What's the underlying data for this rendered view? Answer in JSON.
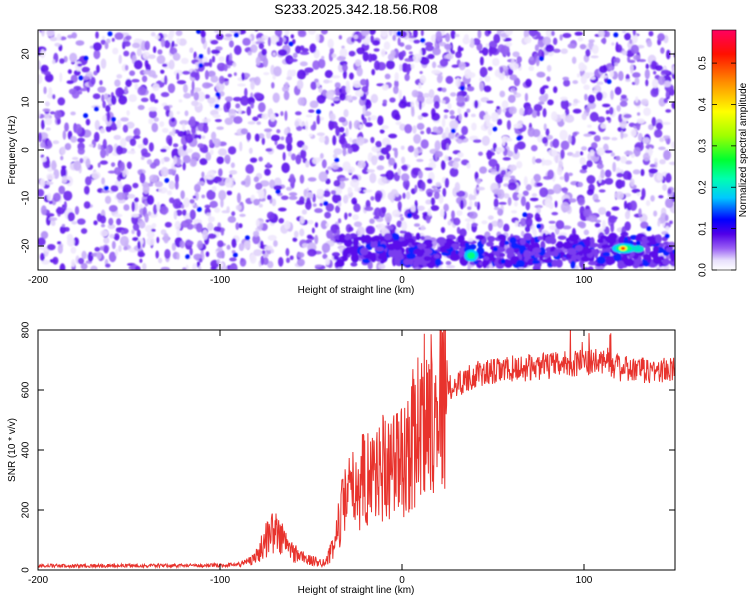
{
  "title": "S233.2025.342.18.56.R08",
  "chart_data": [
    {
      "type": "heatmap",
      "xlabel": "Height of straight line (km)",
      "ylabel": "Frequency (Hz)",
      "xlim": [
        -200,
        150
      ],
      "ylim": [
        -25,
        25
      ],
      "xticks": [
        -200,
        -100,
        0,
        100
      ],
      "yticks": [
        -20,
        -10,
        0,
        10,
        20
      ],
      "colorbar": {
        "label": "Normalized spectral amplitude",
        "range": [
          0,
          0.58
        ],
        "ticks": [
          0.0,
          0.1,
          0.2,
          0.3,
          0.4,
          0.5
        ],
        "colors": [
          "#ffffff",
          "#d8c8f8",
          "#8040f0",
          "#5000e8",
          "#0000ff",
          "#00c0ff",
          "#00ffa0",
          "#00ff00",
          "#c0ff00",
          "#ffff00",
          "#ff8000",
          "#ff0000",
          "#ff0060"
        ]
      },
      "features": [
        {
          "label": "bright band near -21 Hz",
          "x_range": [
            -35,
            150
          ],
          "y": -21
        },
        {
          "x": 38,
          "y": -22,
          "value": 0.22
        },
        {
          "x": 122,
          "y": -20.5,
          "value": 0.55
        }
      ]
    },
    {
      "type": "line",
      "xlabel": "Height of straight line (km)",
      "ylabel": "SNR (10 * v/v)",
      "xlim": [
        -200,
        150
      ],
      "ylim": [
        0,
        800
      ],
      "xticks": [
        -200,
        -100,
        0,
        100
      ],
      "yticks": [
        0,
        200,
        400,
        600,
        800
      ],
      "color": "#e8332d",
      "profile": {
        "x": [
          -200,
          -150,
          -100,
          -88,
          -80,
          -72,
          -68,
          -60,
          -50,
          -42,
          -38,
          -33,
          -28,
          -22,
          -15,
          -8,
          0,
          5,
          12,
          20,
          30,
          40,
          60,
          80,
          95,
          105,
          112,
          120,
          130,
          150
        ],
        "y": [
          14,
          14,
          15,
          20,
          45,
          130,
          120,
          60,
          30,
          25,
          70,
          200,
          260,
          300,
          330,
          360,
          360,
          420,
          520,
          580,
          620,
          650,
          670,
          680,
          690,
          690,
          700,
          670,
          665,
          665
        ]
      }
    }
  ]
}
